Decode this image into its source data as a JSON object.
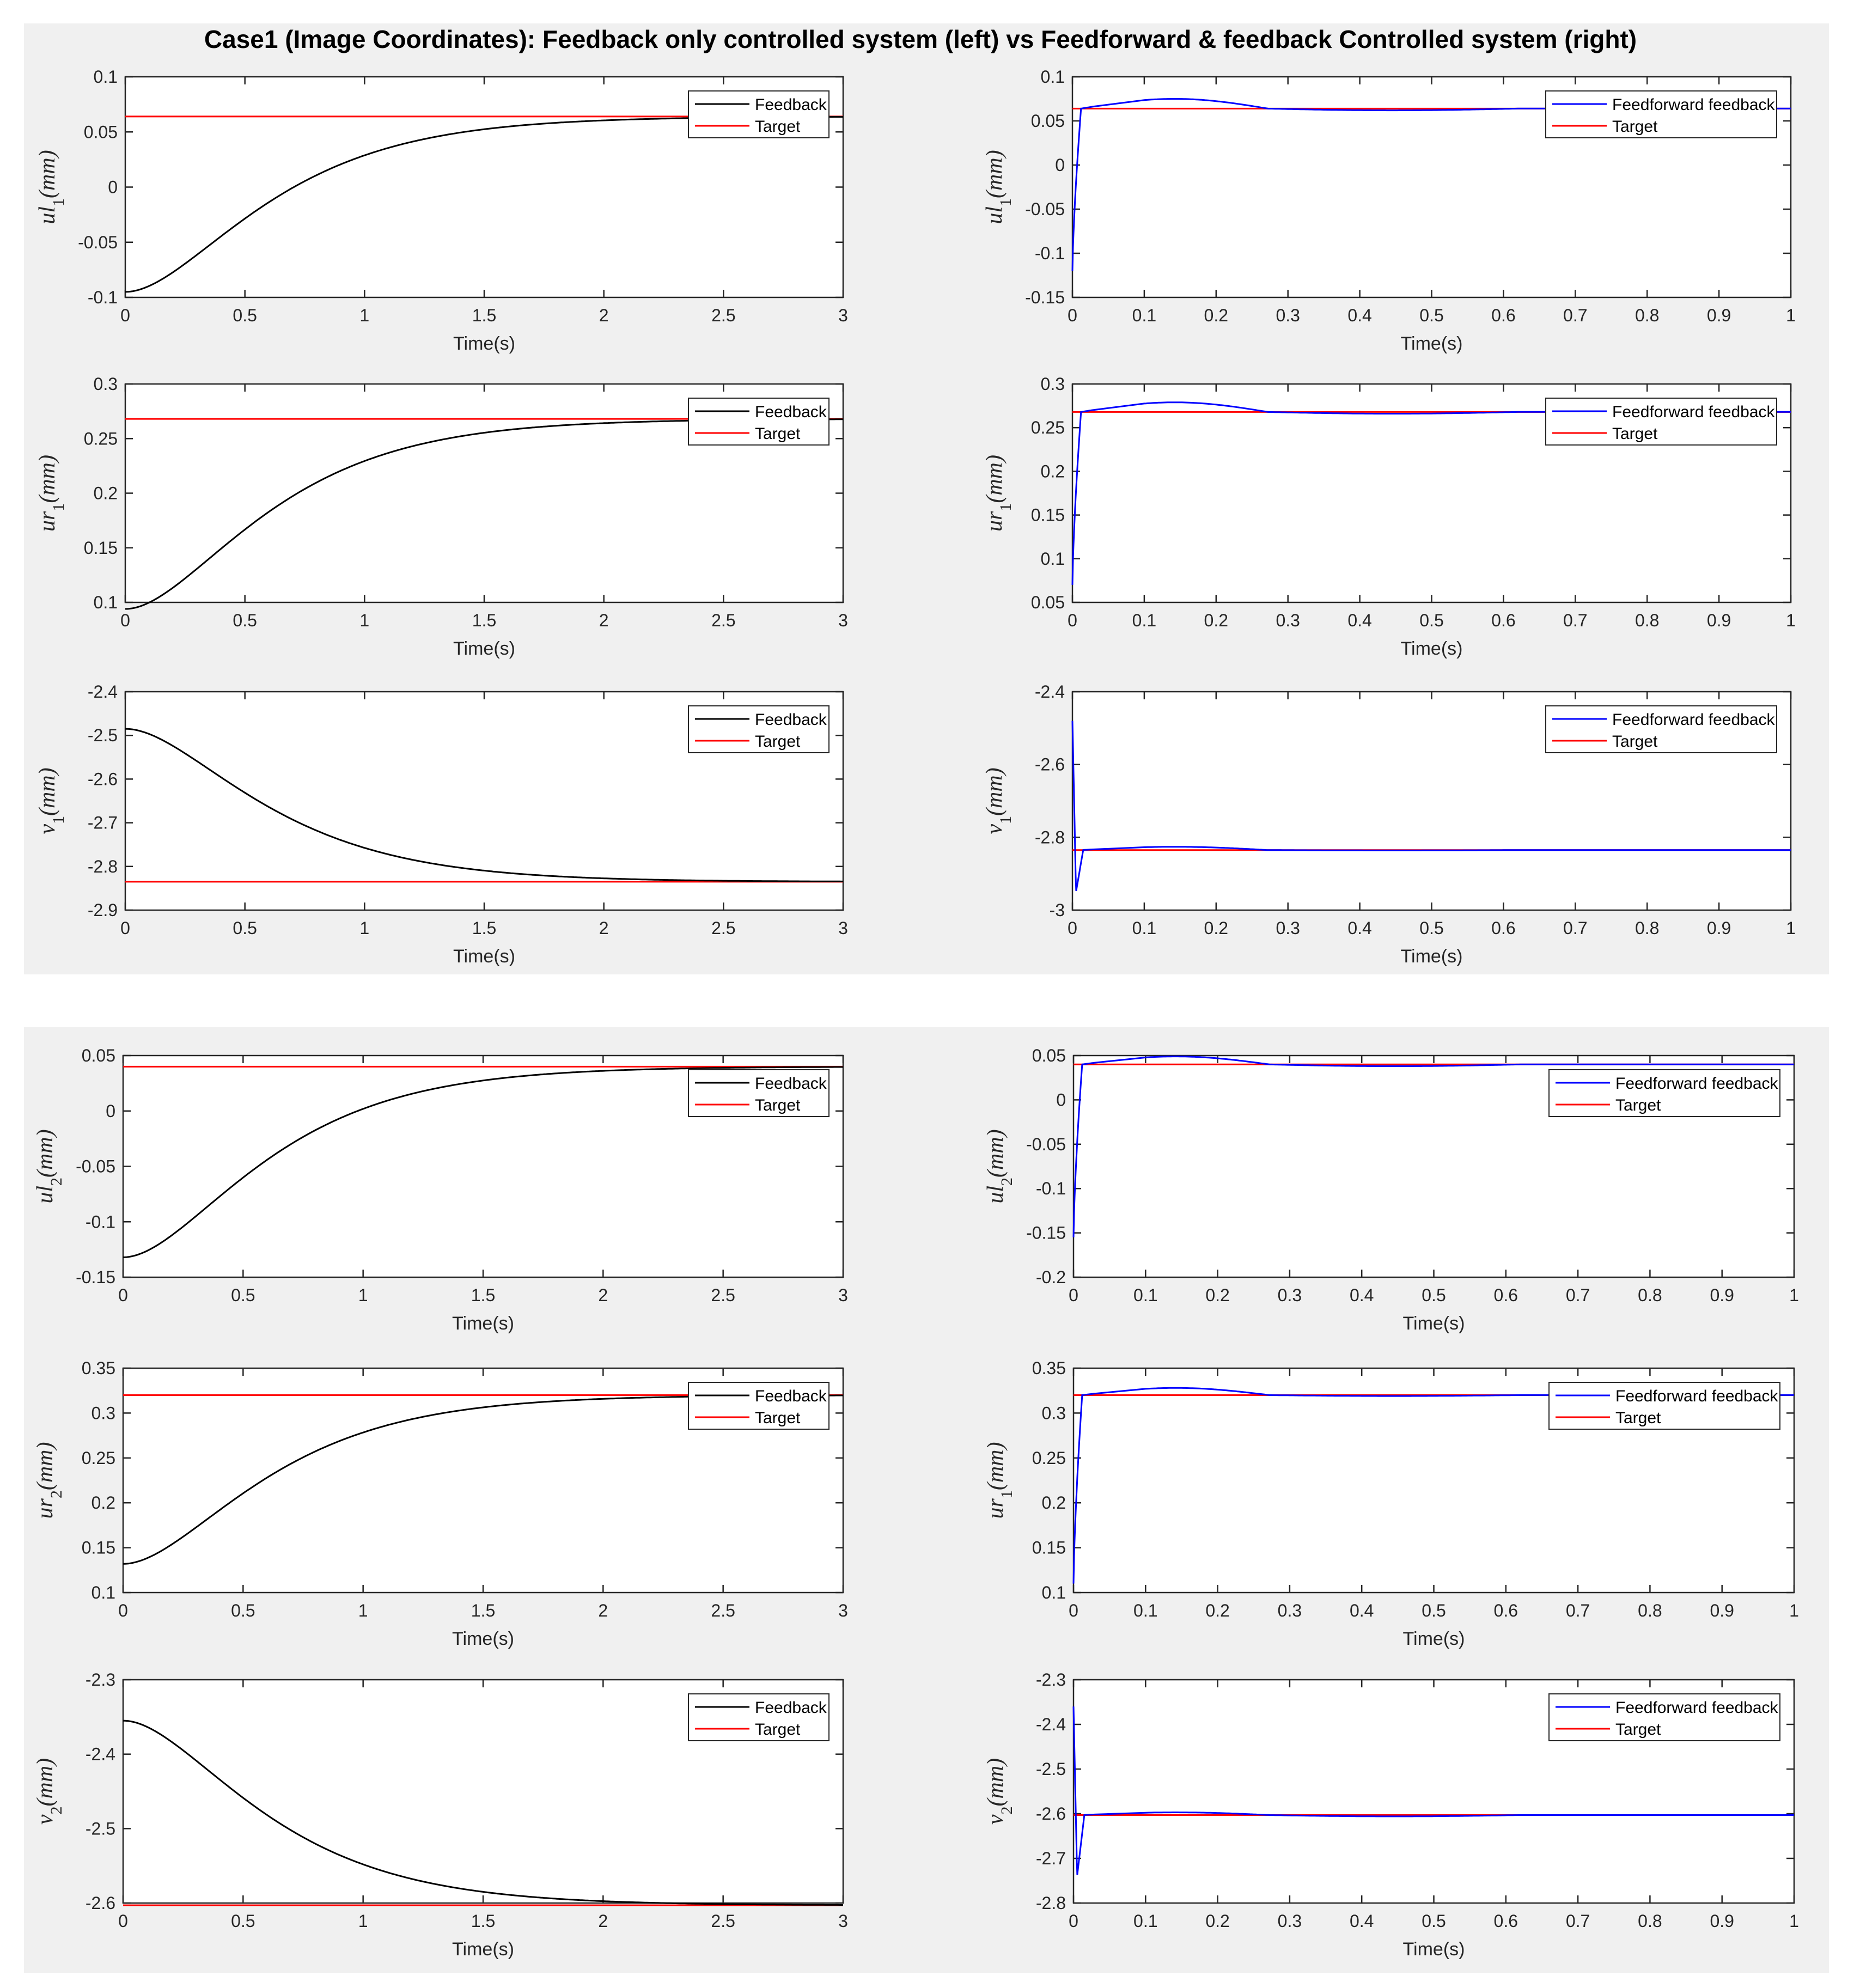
{
  "title": "Case1 (Image Coordinates): Feedback only controlled system (left) vs Feedforward & feedback Controlled system (right)",
  "colors": {
    "feedback": "#000000",
    "feedforward": "#0000ff",
    "target": "#ff0000",
    "panel": "#f0f0f0"
  },
  "chart_data": [
    {
      "id": "ul1-fb",
      "type": "line",
      "ylabel": "ul1",
      "xlabel": "Time(s)",
      "xlim": [
        0,
        3
      ],
      "ylim": [
        -0.1,
        0.1
      ],
      "xticks": [
        "0",
        "0.5",
        "1",
        "1.5",
        "2",
        "2.5",
        "3"
      ],
      "yticks": [
        "-0.1",
        "-0.05",
        "0",
        "0.05",
        "0.1"
      ],
      "model": {
        "kind": "fb",
        "y0": -0.095,
        "target": 0.064,
        "tau": 0.35
      },
      "legend": [
        "Feedback",
        "Target"
      ]
    },
    {
      "id": "ul1-ff",
      "type": "line",
      "ylabel": "ul1",
      "xlabel": "Time(s)",
      "xlim": [
        0,
        1
      ],
      "ylim": [
        -0.15,
        0.1
      ],
      "xticks": [
        "0",
        "0.1",
        "0.2",
        "0.3",
        "0.4",
        "0.5",
        "0.6",
        "0.7",
        "0.8",
        "0.9",
        "1"
      ],
      "yticks": [
        "-0.15",
        "-0.1",
        "-0.05",
        "0",
        "0.05",
        "0.1"
      ],
      "model": {
        "kind": "ff",
        "y0": -0.12,
        "target": 0.064,
        "peak": 0.075,
        "under": 0.062
      },
      "legend": [
        "Feedforward feedback",
        "Target"
      ]
    },
    {
      "id": "ur1-fb",
      "type": "line",
      "ylabel": "ur1",
      "xlabel": "Time(s)",
      "xlim": [
        0,
        3
      ],
      "ylim": [
        0.1,
        0.3
      ],
      "xticks": [
        "0",
        "0.5",
        "1",
        "1.5",
        "2",
        "2.5",
        "3"
      ],
      "yticks": [
        "0.1",
        "0.15",
        "0.2",
        "0.25",
        "0.3"
      ],
      "model": {
        "kind": "fb",
        "y0": 0.094,
        "target": 0.268,
        "tau": 0.35
      },
      "legend": [
        "Feedback",
        "Target"
      ]
    },
    {
      "id": "ur1-ff",
      "type": "line",
      "ylabel": "ur1",
      "xlabel": "Time(s)",
      "xlim": [
        0,
        1
      ],
      "ylim": [
        0.05,
        0.3
      ],
      "xticks": [
        "0",
        "0.1",
        "0.2",
        "0.3",
        "0.4",
        "0.5",
        "0.6",
        "0.7",
        "0.8",
        "0.9",
        "1"
      ],
      "yticks": [
        "0.05",
        "0.1",
        "0.15",
        "0.2",
        "0.25",
        "0.3"
      ],
      "model": {
        "kind": "ff",
        "y0": 0.07,
        "target": 0.268,
        "peak": 0.279,
        "under": 0.266
      },
      "legend": [
        "Feedforward feedback",
        "Target"
      ]
    },
    {
      "id": "v1-fb",
      "type": "line",
      "ylabel": "v1",
      "xlabel": "Time(s)",
      "xlim": [
        0,
        3
      ],
      "ylim": [
        -2.9,
        -2.4
      ],
      "xticks": [
        "0",
        "0.5",
        "1",
        "1.5",
        "2",
        "2.5",
        "3"
      ],
      "yticks": [
        "-2.9",
        "-2.8",
        "-2.7",
        "-2.6",
        "-2.5",
        "-2.4"
      ],
      "model": {
        "kind": "fb",
        "y0": -2.485,
        "target": -2.835,
        "tau": 0.35
      },
      "legend": [
        "Feedback",
        "Target"
      ]
    },
    {
      "id": "v1-ff",
      "type": "line",
      "ylabel": "v1",
      "xlabel": "Time(s)",
      "xlim": [
        0,
        1
      ],
      "ylim": [
        -3,
        -2.4
      ],
      "xticks": [
        "0",
        "0.1",
        "0.2",
        "0.3",
        "0.4",
        "0.5",
        "0.6",
        "0.7",
        "0.8",
        "0.9",
        "1"
      ],
      "yticks": [
        "-3",
        "-2.8",
        "-2.6",
        "-2.4"
      ],
      "model": {
        "kind": "ff",
        "y0": -2.48,
        "dip": -2.95,
        "target": -2.835,
        "peak": -2.826,
        "under": -2.836
      },
      "legend": [
        "Feedforward feedback",
        "Target"
      ]
    },
    {
      "id": "ul2-fb",
      "type": "line",
      "ylabel": "ul2",
      "xlabel": "Time(s)",
      "xlim": [
        0,
        3
      ],
      "ylim": [
        -0.15,
        0.05
      ],
      "xticks": [
        "0",
        "0.5",
        "1",
        "1.5",
        "2",
        "2.5",
        "3"
      ],
      "yticks": [
        "-0.15",
        "-0.1",
        "-0.05",
        "0",
        "0.05"
      ],
      "model": {
        "kind": "fb",
        "y0": -0.132,
        "target": 0.04,
        "tau": 0.35
      },
      "legend": [
        "Feedback",
        "Target"
      ]
    },
    {
      "id": "ul2-ff",
      "type": "line",
      "ylabel": "ul2",
      "xlabel": "Time(s)",
      "xlim": [
        0,
        1
      ],
      "ylim": [
        -0.2,
        0.05
      ],
      "xticks": [
        "0",
        "0.1",
        "0.2",
        "0.3",
        "0.4",
        "0.5",
        "0.6",
        "0.7",
        "0.8",
        "0.9",
        "1"
      ],
      "yticks": [
        "-0.2",
        "-0.15",
        "-0.1",
        "-0.05",
        "0",
        "0.05"
      ],
      "model": {
        "kind": "ff",
        "y0": -0.155,
        "target": 0.04,
        "peak": 0.049,
        "under": 0.038
      },
      "legend": [
        "Feedforward feedback",
        "Target"
      ]
    },
    {
      "id": "ur2-fb",
      "type": "line",
      "ylabel": "ur2",
      "xlabel": "Time(s)",
      "xlim": [
        0,
        3
      ],
      "ylim": [
        0.1,
        0.35
      ],
      "xticks": [
        "0",
        "0.5",
        "1",
        "1.5",
        "2",
        "2.5",
        "3"
      ],
      "yticks": [
        "0.1",
        "0.15",
        "0.2",
        "0.25",
        "0.3",
        "0.35"
      ],
      "model": {
        "kind": "fb",
        "y0": 0.132,
        "target": 0.32,
        "tau": 0.35
      },
      "legend": [
        "Feedback",
        "Target"
      ]
    },
    {
      "id": "ur2-ff",
      "type": "line",
      "ylabel": "ur1",
      "xlabel": "Time(s)",
      "xlim": [
        0,
        1
      ],
      "ylim": [
        0.1,
        0.35
      ],
      "xticks": [
        "0",
        "0.1",
        "0.2",
        "0.3",
        "0.4",
        "0.5",
        "0.6",
        "0.7",
        "0.8",
        "0.9",
        "1"
      ],
      "yticks": [
        "0.1",
        "0.15",
        "0.2",
        "0.25",
        "0.3",
        "0.35"
      ],
      "model": {
        "kind": "ff",
        "y0": 0.11,
        "target": 0.32,
        "peak": 0.328,
        "under": 0.319
      },
      "legend": [
        "Feedforward feedback",
        "Target"
      ]
    },
    {
      "id": "v2-fb",
      "type": "line",
      "ylabel": "v2",
      "xlabel": "Time(s)",
      "xlim": [
        0,
        3
      ],
      "ylim": [
        -2.6,
        -2.3
      ],
      "xticks": [
        "0",
        "0.5",
        "1",
        "1.5",
        "2",
        "2.5",
        "3"
      ],
      "yticks": [
        "-2.6",
        "-2.5",
        "-2.4",
        "-2.3"
      ],
      "model": {
        "kind": "fb",
        "y0": -2.355,
        "target": -2.603,
        "tau": 0.35
      },
      "legend": [
        "Feedback",
        "Target"
      ]
    },
    {
      "id": "v2-ff",
      "type": "line",
      "ylabel": "v2",
      "xlabel": "Time(s)",
      "xlim": [
        0,
        1
      ],
      "ylim": [
        -2.8,
        -2.3
      ],
      "xticks": [
        "0",
        "0.1",
        "0.2",
        "0.3",
        "0.4",
        "0.5",
        "0.6",
        "0.7",
        "0.8",
        "0.9",
        "1"
      ],
      "yticks": [
        "-2.8",
        "-2.7",
        "-2.6",
        "-2.5",
        "-2.4",
        "-2.3"
      ],
      "model": {
        "kind": "ff",
        "y0": -2.36,
        "dip": -2.74,
        "target": -2.603,
        "peak": -2.597,
        "under": -2.606
      },
      "legend": [
        "Feedforward feedback",
        "Target"
      ]
    }
  ]
}
